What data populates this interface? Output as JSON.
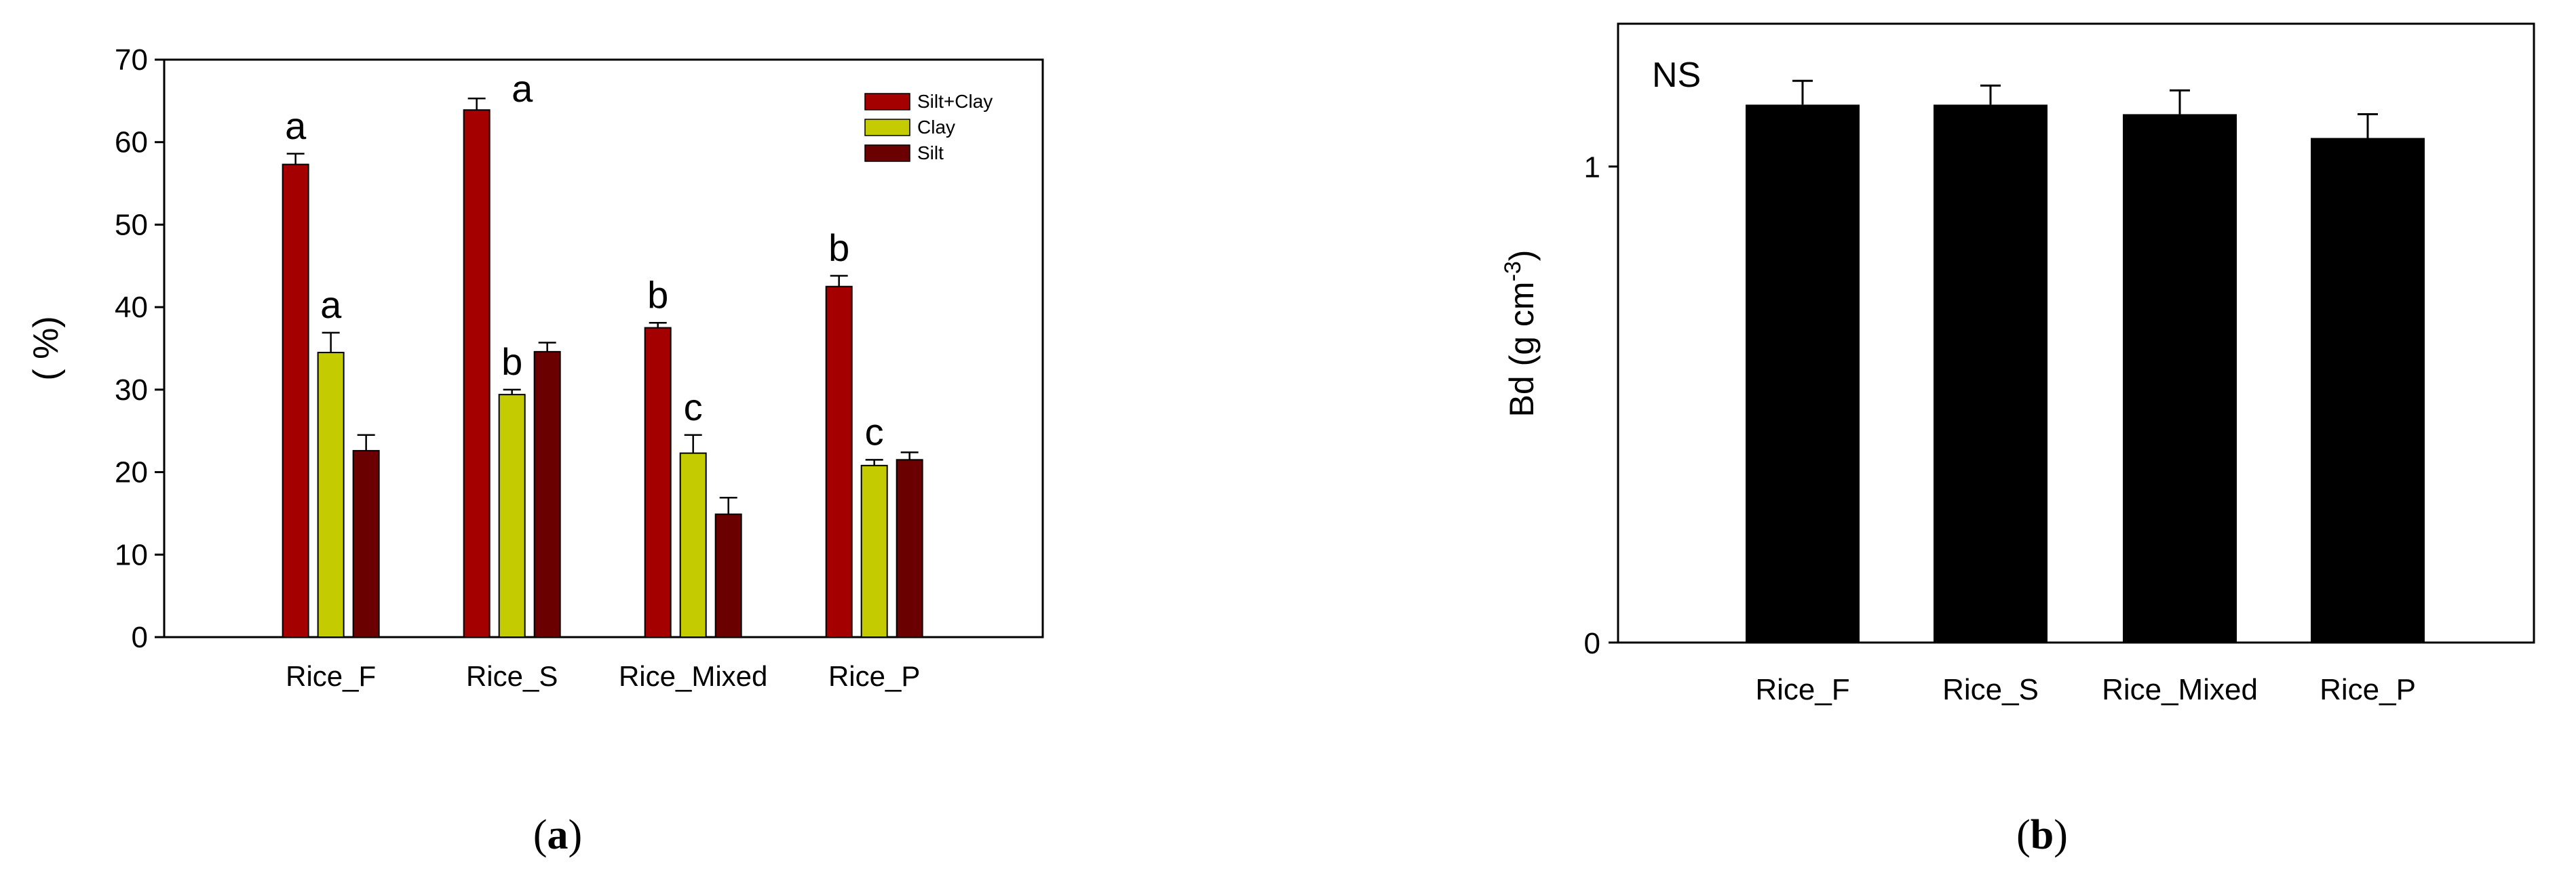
{
  "chart_data": [
    {
      "panel": "a",
      "type": "bar",
      "title": "",
      "xlabel": "",
      "ylabel": "( %)",
      "ylim": [
        0,
        70
      ],
      "yticks": [
        "0",
        "10",
        "20",
        "30",
        "40",
        "50",
        "60",
        "70"
      ],
      "categories": [
        "Rice_F",
        "Rice_S",
        "Rice_Mixed",
        "Rice_P"
      ],
      "legend_position": "top-right",
      "grid": false,
      "series": [
        {
          "name": "Silt+Clay",
          "color": "#a50000",
          "values": [
            57.3,
            63.9,
            37.5,
            42.5
          ],
          "errors": [
            1.3,
            1.4,
            0.6,
            1.3
          ],
          "letters": [
            "a",
            "a",
            "b",
            "b"
          ]
        },
        {
          "name": "Clay",
          "color": "#c4cc00",
          "values": [
            34.5,
            29.4,
            22.3,
            20.8
          ],
          "errors": [
            2.4,
            0.6,
            2.2,
            0.7
          ],
          "letters": [
            "a",
            "b",
            "c",
            "c"
          ]
        },
        {
          "name": "Silt",
          "color": "#6b0000",
          "values": [
            22.6,
            34.6,
            14.9,
            21.5
          ],
          "errors": [
            1.9,
            1.1,
            2.0,
            0.9
          ],
          "letters": [
            "",
            "",
            "",
            ""
          ]
        }
      ]
    },
    {
      "panel": "b",
      "type": "bar",
      "title": "",
      "xlabel": "",
      "ylabel_main": "Bd (g cm",
      "ylabel_sup": "-3",
      "ylabel_tail": ")",
      "ylim": [
        0,
        1.3
      ],
      "yticks": [
        {
          "value": 0,
          "label": "0"
        },
        {
          "value": 1,
          "label": "1"
        }
      ],
      "annotation": "NS",
      "categories": [
        "Rice_F",
        "Rice_S",
        "Rice_Mixed",
        "Rice_P"
      ],
      "grid": false,
      "series": [
        {
          "color": "#000000",
          "values": [
            1.13,
            1.13,
            1.11,
            1.06
          ],
          "errors": [
            0.05,
            0.04,
            0.05,
            0.05
          ]
        }
      ]
    }
  ],
  "panel_labels": {
    "a": {
      "open": "(",
      "letter": "a",
      "close": ")"
    },
    "b": {
      "open": "(",
      "letter": "b",
      "close": ")"
    }
  }
}
